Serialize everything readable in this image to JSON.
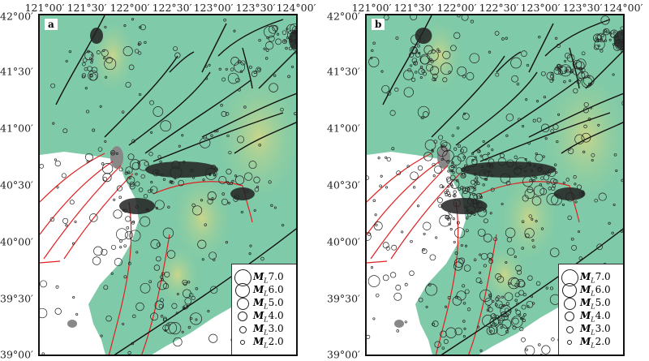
{
  "lon_ticks": [
    "121°00′",
    "121°30′",
    "122°00′",
    "122°30′",
    "123°00′",
    "123°30′",
    "124°00′"
  ],
  "lat_ticks": [
    "42°00′",
    "41°30′",
    "41°00′",
    "40°30′",
    "40°00′",
    "39°30′",
    "39°00′"
  ],
  "panels": [
    {
      "label": "a",
      "density": 0.8
    },
    {
      "label": "b",
      "density": 1.4
    }
  ],
  "legend": [
    {
      "m": "M",
      "sub": "L",
      "value": "7.0",
      "mag": 7
    },
    {
      "m": "M",
      "sub": "L",
      "value": "6.0",
      "mag": 6
    },
    {
      "m": "M",
      "sub": "L",
      "value": "5.0",
      "mag": 5
    },
    {
      "m": "M",
      "sub": "L",
      "value": "4.0",
      "mag": 4
    },
    {
      "m": "M",
      "sub": "L",
      "value": "3.0",
      "mag": 3
    },
    {
      "m": "M",
      "sub": "L",
      "value": "2.0",
      "mag": 2
    }
  ],
  "colors": {
    "land": "#7fcaa8",
    "highland": "#c9d68a",
    "sea": "#ffffff",
    "fault_land": "#111111",
    "fault_sea": "#e02020",
    "quake": "#222222"
  }
}
